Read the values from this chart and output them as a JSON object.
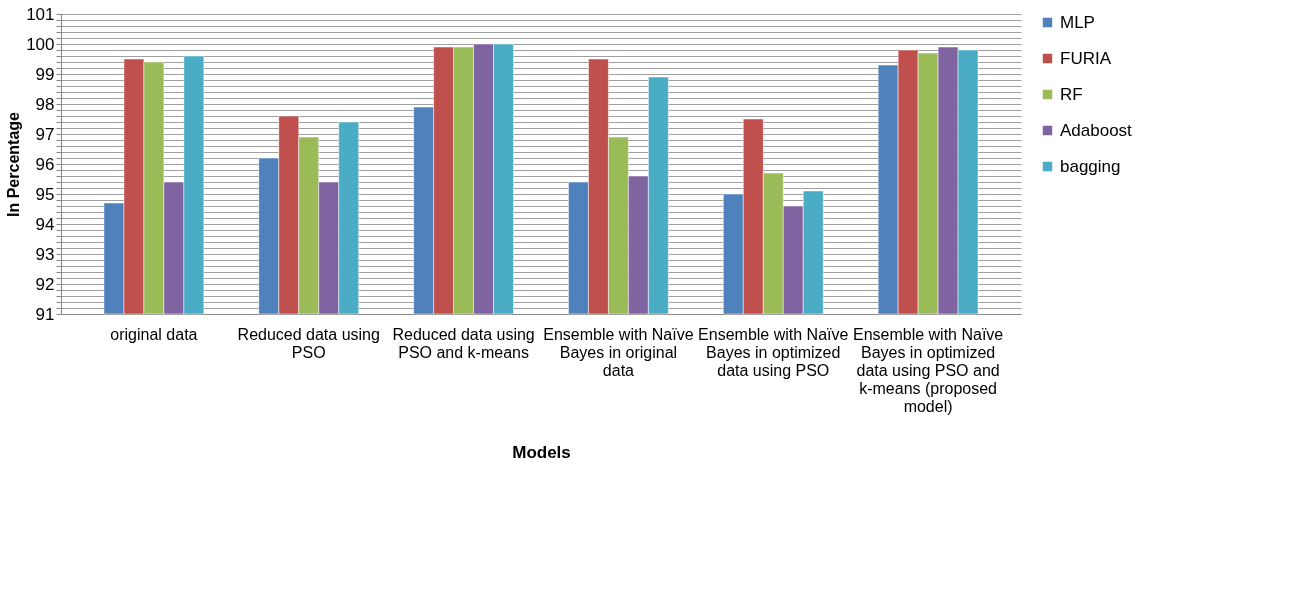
{
  "chart_data": {
    "type": "bar",
    "xlabel": "Models",
    "ylabel": "In Percentage",
    "categories": [
      "original data",
      "Reduced data using PSO",
      "Reduced data using PSO and k-means",
      "Ensemble with Naïve Bayes in original data",
      "Ensemble with Naïve Bayes in optimized data using PSO",
      "Ensemble with Naïve Bayes in optimized data using PSO and k-means (proposed model)"
    ],
    "series": [
      {
        "name": "MLP",
        "color": "#4f81bd",
        "values": [
          94.7,
          96.2,
          97.9,
          95.4,
          95.0,
          99.3
        ]
      },
      {
        "name": "FURIA",
        "color": "#c0504d",
        "values": [
          99.5,
          97.6,
          99.9,
          99.5,
          97.5,
          99.8
        ]
      },
      {
        "name": "RF",
        "color": "#9bbb59",
        "values": [
          99.4,
          96.9,
          99.9,
          96.9,
          95.7,
          99.7
        ]
      },
      {
        "name": "Adaboost",
        "color": "#8064a2",
        "values": [
          95.4,
          95.4,
          100.0,
          95.6,
          94.6,
          99.9
        ]
      },
      {
        "name": "bagging",
        "color": "#4bacc6",
        "values": [
          99.6,
          97.4,
          100.0,
          98.9,
          95.1,
          99.8
        ]
      }
    ],
    "ylim": [
      91,
      101
    ],
    "yticks": [
      91,
      {
        "value": 91.2,
        "label": null
      },
      {
        "value": 91.4,
        "label": null
      },
      {
        "value": 91.6,
        "label": null
      },
      {
        "value": 91.8,
        "label": null
      },
      92,
      {
        "value": 92.2,
        "label": null
      },
      {
        "value": 92.4,
        "label": null
      },
      {
        "value": 92.6,
        "label": null
      },
      {
        "value": 92.8,
        "label": null
      },
      93,
      {
        "value": 93.2,
        "label": null
      },
      {
        "value": 93.4,
        "label": null
      },
      {
        "value": 93.6,
        "label": null
      },
      {
        "value": 93.8,
        "label": null
      },
      94,
      {
        "value": 94.2,
        "label": null
      },
      {
        "value": 94.4,
        "label": null
      },
      {
        "value": 94.6,
        "label": null
      },
      {
        "value": 94.8,
        "label": null
      },
      95,
      {
        "value": 95.2,
        "label": null
      },
      {
        "value": 95.4,
        "label": null
      },
      {
        "value": 95.6,
        "label": null
      },
      {
        "value": 95.8,
        "label": null
      },
      96,
      {
        "value": 96.2,
        "label": null
      },
      {
        "value": 96.4,
        "label": null
      },
      {
        "value": 96.6,
        "label": null
      },
      {
        "value": 96.8,
        "label": null
      },
      97,
      {
        "value": 97.2,
        "label": null
      },
      {
        "value": 97.4,
        "label": null
      },
      {
        "value": 97.6,
        "label": null
      },
      {
        "value": 97.8,
        "label": null
      },
      98,
      {
        "value": 98.2,
        "label": null
      },
      {
        "value": 98.4,
        "label": null
      },
      {
        "value": 98.6,
        "label": null
      },
      {
        "value": 98.8,
        "label": null
      },
      99,
      {
        "value": 99.2,
        "label": null
      },
      {
        "value": 99.4,
        "label": null
      },
      {
        "value": 99.6,
        "label": null
      },
      {
        "value": 99.8,
        "label": null
      },
      100,
      {
        "value": 100.2,
        "label": null
      },
      {
        "value": 100.4,
        "label": null
      },
      {
        "value": 100.6,
        "label": null
      },
      {
        "value": 100.8,
        "label": null
      },
      101
    ],
    "grid": "y",
    "legend": "right"
  }
}
